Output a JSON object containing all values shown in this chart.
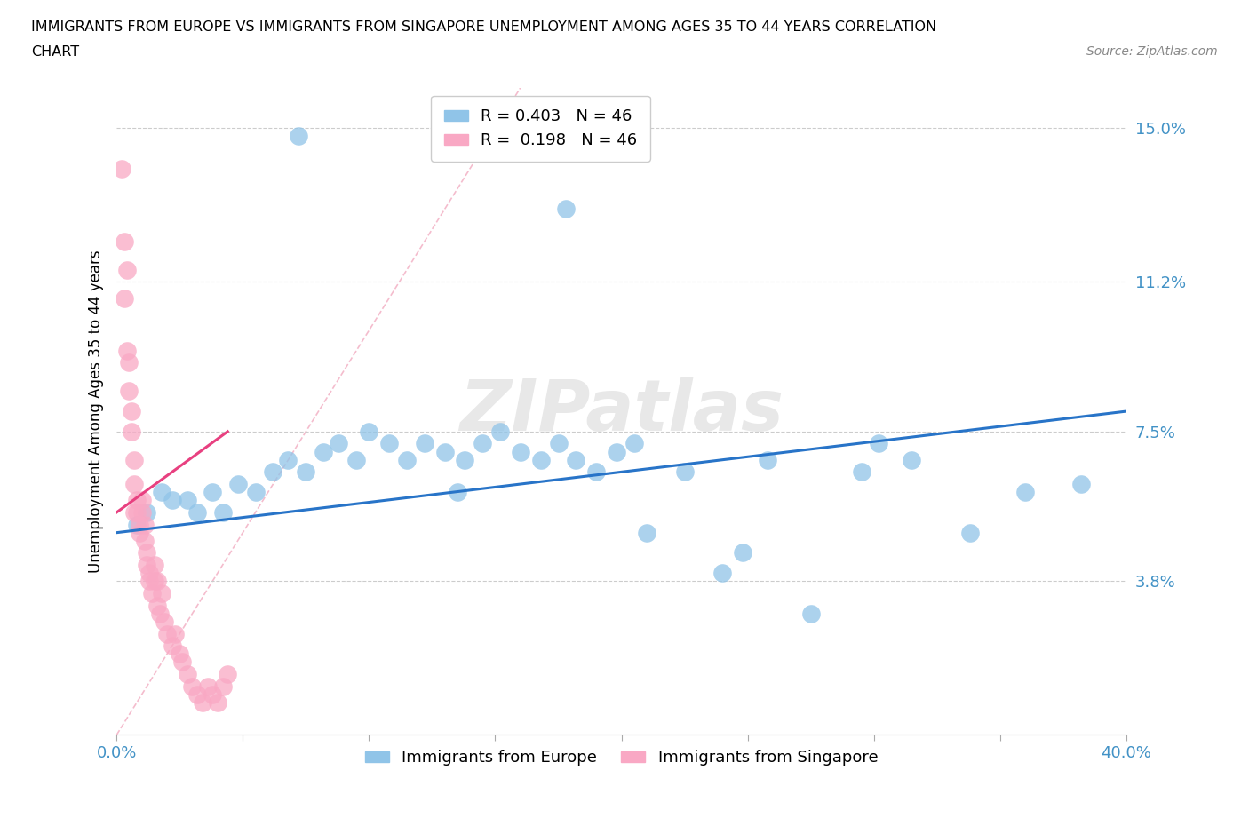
{
  "title_line1": "IMMIGRANTS FROM EUROPE VS IMMIGRANTS FROM SINGAPORE UNEMPLOYMENT AMONG AGES 35 TO 44 YEARS CORRELATION",
  "title_line2": "CHART",
  "source": "Source: ZipAtlas.com",
  "ylabel": "Unemployment Among Ages 35 to 44 years",
  "xlim": [
    0,
    0.4
  ],
  "ylim": [
    0,
    0.16
  ],
  "yticks": [
    0.038,
    0.075,
    0.112,
    0.15
  ],
  "ytick_labels": [
    "3.8%",
    "7.5%",
    "11.2%",
    "15.0%"
  ],
  "xticks": [
    0.0,
    0.05,
    0.1,
    0.15,
    0.2,
    0.25,
    0.3,
    0.35,
    0.4
  ],
  "xtick_labels": [
    "0.0%",
    "",
    "",
    "",
    "",
    "",
    "",
    "",
    "40.0%"
  ],
  "legend_r_labels": [
    "R = 0.403   N = 46",
    "R =  0.198   N = 46"
  ],
  "legend_labels": [
    "Immigrants from Europe",
    "Immigrants from Singapore"
  ],
  "europe_color": "#90c4e8",
  "singapore_color": "#f9a8c4",
  "trend_europe_color": "#2874c8",
  "trend_singapore_color": "#e84080",
  "diag_color": "#f0a0b8",
  "watermark_text": "ZIPatlas",
  "europe_x": [
    0.008,
    0.012,
    0.018,
    0.022,
    0.028,
    0.032,
    0.038,
    0.042,
    0.048,
    0.055,
    0.062,
    0.068,
    0.075,
    0.082,
    0.088,
    0.095,
    0.1,
    0.108,
    0.115,
    0.122,
    0.13,
    0.138,
    0.145,
    0.152,
    0.16,
    0.168,
    0.175,
    0.182,
    0.19,
    0.198,
    0.21,
    0.225,
    0.24,
    0.258,
    0.275,
    0.295,
    0.315,
    0.338,
    0.36,
    0.382,
    0.205,
    0.248,
    0.178,
    0.302,
    0.135,
    0.072
  ],
  "europe_y": [
    0.052,
    0.055,
    0.06,
    0.058,
    0.058,
    0.055,
    0.06,
    0.055,
    0.062,
    0.06,
    0.065,
    0.068,
    0.065,
    0.07,
    0.072,
    0.068,
    0.075,
    0.072,
    0.068,
    0.072,
    0.07,
    0.068,
    0.072,
    0.075,
    0.07,
    0.068,
    0.072,
    0.068,
    0.065,
    0.07,
    0.05,
    0.065,
    0.04,
    0.068,
    0.03,
    0.065,
    0.068,
    0.05,
    0.06,
    0.062,
    0.072,
    0.045,
    0.13,
    0.072,
    0.06,
    0.148
  ],
  "singapore_x": [
    0.002,
    0.003,
    0.003,
    0.004,
    0.004,
    0.005,
    0.005,
    0.006,
    0.006,
    0.007,
    0.007,
    0.008,
    0.008,
    0.009,
    0.01,
    0.01,
    0.011,
    0.011,
    0.012,
    0.012,
    0.013,
    0.013,
    0.014,
    0.015,
    0.015,
    0.016,
    0.016,
    0.017,
    0.018,
    0.019,
    0.02,
    0.022,
    0.023,
    0.025,
    0.026,
    0.028,
    0.03,
    0.032,
    0.034,
    0.036,
    0.038,
    0.04,
    0.042,
    0.044,
    0.007,
    0.009
  ],
  "singapore_y": [
    0.14,
    0.122,
    0.108,
    0.095,
    0.115,
    0.085,
    0.092,
    0.075,
    0.08,
    0.068,
    0.062,
    0.058,
    0.055,
    0.05,
    0.055,
    0.058,
    0.052,
    0.048,
    0.045,
    0.042,
    0.038,
    0.04,
    0.035,
    0.038,
    0.042,
    0.038,
    0.032,
    0.03,
    0.035,
    0.028,
    0.025,
    0.022,
    0.025,
    0.02,
    0.018,
    0.015,
    0.012,
    0.01,
    0.008,
    0.012,
    0.01,
    0.008,
    0.012,
    0.015,
    0.055,
    0.052
  ],
  "trend_europe_x0": 0.0,
  "trend_europe_x1": 0.4,
  "trend_europe_y0": 0.05,
  "trend_europe_y1": 0.08,
  "trend_singapore_x0": 0.0,
  "trend_singapore_x1": 0.044,
  "trend_singapore_y0": 0.055,
  "trend_singapore_y1": 0.075
}
